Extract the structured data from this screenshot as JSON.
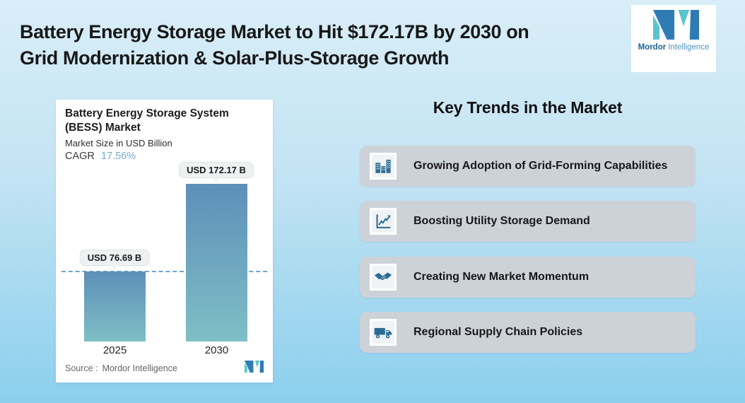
{
  "header": {
    "title_line1": "Battery Energy Storage Market to Hit $172.17B by 2030 on",
    "title_line2": "Grid Modernization & Solar-Plus-Storage Growth"
  },
  "brand": {
    "name_bold": "Mordor",
    "name_light": "Intelligence",
    "teal": "#58c6cc",
    "blue": "#2f7cb5"
  },
  "chart_card": {
    "title": "Battery Energy Storage System (BESS) Market",
    "subtitle": "Market Size in USD Billion",
    "cagr_label": "CAGR",
    "cagr_value": "17.56%",
    "source_label": "Source :",
    "source_value": "Mordor Intelligence"
  },
  "chart_data": {
    "type": "bar",
    "title": "Battery Energy Storage System (BESS) Market",
    "ylabel": "Market Size in USD Billion",
    "cagr": "17.56%",
    "unit": "USD Billion",
    "categories": [
      "2025",
      "2030"
    ],
    "values": [
      76.69,
      172.17
    ],
    "value_labels": [
      "USD 76.69 B",
      "USD 172.17 B"
    ],
    "dashed_reference_value": 76.69,
    "grid": false,
    "colors": {
      "bar_top": "#5d8fb8",
      "bar_bottom": "#7fbfc6",
      "dashed_line": "#6ca3cf"
    }
  },
  "key_trends": {
    "heading": "Key Trends in the Market",
    "card_color": "#cdd2d9",
    "icon_color": "#2b6d92",
    "items": [
      {
        "icon": "buildings-icon",
        "label": "Growing Adoption of Grid-Forming Capabilities"
      },
      {
        "icon": "line-chart-icon",
        "label": "Boosting Utility Storage Demand"
      },
      {
        "icon": "handshake-icon",
        "label": "Creating New Market Momentum"
      },
      {
        "icon": "truck-icon",
        "label": "Regional Supply Chain Policies"
      }
    ]
  }
}
